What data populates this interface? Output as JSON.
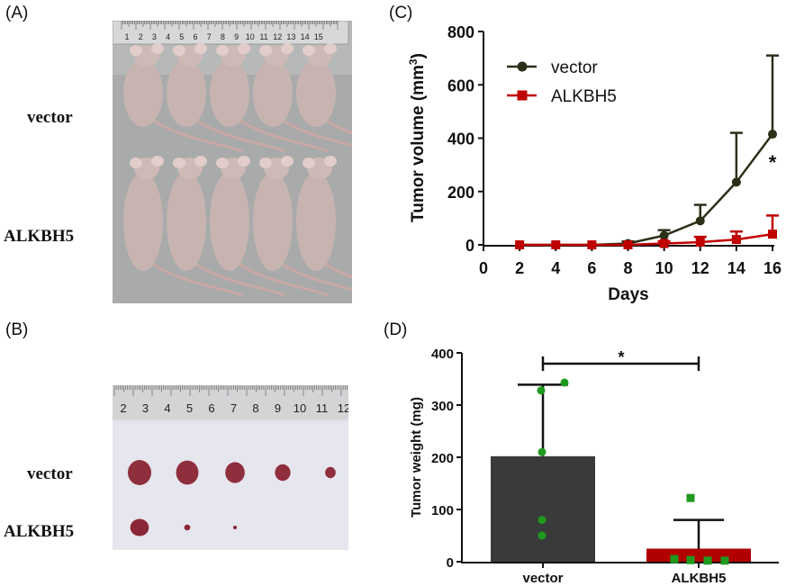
{
  "panels": {
    "a": "(A)",
    "b": "(B)",
    "c": "(C)",
    "d": "(D)"
  },
  "photo_a": {
    "row_labels": [
      "vector",
      "ALKBH5"
    ],
    "ruler_numbers": [
      "1",
      "2",
      "3",
      "4",
      "5",
      "6",
      "7",
      "8",
      "9",
      "10",
      "11",
      "12",
      "13",
      "14",
      "15"
    ],
    "mice_per_row": 5
  },
  "photo_b": {
    "row_labels": [
      "vector",
      "ALKBH5"
    ],
    "ruler_numbers": [
      "2",
      "3",
      "4",
      "5",
      "6",
      "7",
      "8",
      "9",
      "10",
      "11",
      "12"
    ],
    "tumors": {
      "vector": [
        1.0,
        0.95,
        0.8,
        0.6,
        0.35
      ],
      "ALKBH5": [
        0.85,
        0.22,
        0.1
      ]
    }
  },
  "colors": {
    "vector_line": "#2b3018",
    "alkbh5_line": "#c00000",
    "vector_bar": "#3a3a3a",
    "alkbh5_bar": "#b00000",
    "points": "#1f9a1f"
  },
  "chart_data": [
    {
      "type": "line",
      "xlabel": "Days",
      "ylabel": "Tumor volume (mm³)",
      "ylabel_parts": [
        "Tumor volume (mm",
        "3",
        ")"
      ],
      "xlim": [
        0,
        16
      ],
      "ylim": [
        0,
        800
      ],
      "xticks": [
        "0",
        "2",
        "4",
        "6",
        "8",
        "10",
        "12",
        "14",
        "16"
      ],
      "yticks": [
        "0",
        "200",
        "400",
        "600",
        "800"
      ],
      "legend_placement": "top-left",
      "annotation": "*",
      "x": [
        2,
        4,
        6,
        8,
        10,
        12,
        14,
        16
      ],
      "series": [
        {
          "name": "vector",
          "marker": "circle",
          "values": [
            0,
            0,
            0,
            5,
            35,
            90,
            235,
            415
          ],
          "error": [
            0,
            0,
            0,
            8,
            20,
            60,
            185,
            295
          ]
        },
        {
          "name": "ALKBH5",
          "marker": "square",
          "values": [
            0,
            0,
            0,
            0,
            5,
            10,
            20,
            40
          ],
          "error": [
            0,
            0,
            0,
            0,
            8,
            20,
            30,
            70
          ]
        }
      ]
    },
    {
      "type": "bar",
      "categories": [
        "vector",
        "ALKBH5"
      ],
      "ylabel": "Tumor weight (mg)",
      "ylim": [
        0,
        400
      ],
      "yticks": [
        "0",
        "100",
        "200",
        "300",
        "400"
      ],
      "values": [
        202,
        25
      ],
      "error": [
        137,
        55
      ],
      "annotation": "*",
      "points": [
        [
          343,
          328,
          210,
          80,
          50
        ],
        [
          122,
          5,
          3,
          2,
          2
        ]
      ]
    }
  ]
}
